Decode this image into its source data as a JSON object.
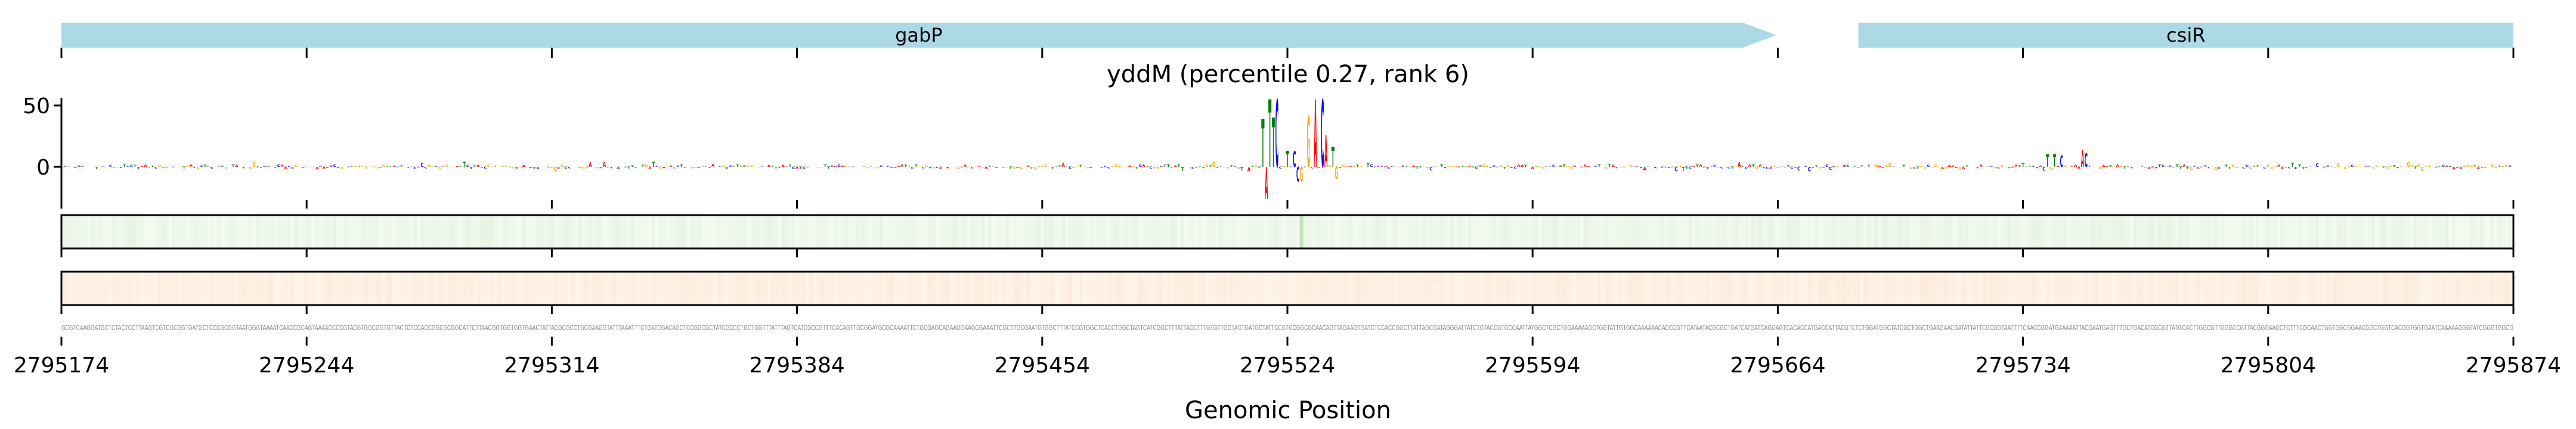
{
  "chart_data": {
    "type": "sequence-logo",
    "title": "yddM (percentile 0.27, rank 6)",
    "xlabel": "Genomic Position",
    "ylabel": "",
    "xlim": [
      2795174,
      2795874
    ],
    "ylim": [
      -25,
      55
    ],
    "yticks": [
      {
        "value": 50,
        "label": "50"
      },
      {
        "value": 0,
        "label": "0"
      }
    ],
    "xticks": [
      {
        "value": 2795174,
        "label": "2795174"
      },
      {
        "value": 2795244,
        "label": "2795244"
      },
      {
        "value": 2795314,
        "label": "2795314"
      },
      {
        "value": 2795384,
        "label": "2795384"
      },
      {
        "value": 2795454,
        "label": "2795454"
      },
      {
        "value": 2795524,
        "label": "2795524"
      },
      {
        "value": 2795594,
        "label": "2795594"
      },
      {
        "value": 2795664,
        "label": "2795664"
      },
      {
        "value": 2795734,
        "label": "2795734"
      },
      {
        "value": 2795804,
        "label": "2795804"
      },
      {
        "value": 2795874,
        "label": "2795874"
      }
    ],
    "genes": [
      {
        "name": "gabP",
        "start": 2795174,
        "end": 2795654,
        "strand": "+"
      },
      {
        "name": "csiR",
        "start": 2795687,
        "end": 2795874,
        "strand": "none"
      }
    ],
    "logo_peaks": [
      {
        "pos": 2795517,
        "base": "T",
        "value": 39
      },
      {
        "pos": 2795518,
        "base": "A",
        "value": -26
      },
      {
        "pos": 2795519,
        "base": "T",
        "value": 55
      },
      {
        "pos": 2795520,
        "base": "T",
        "value": 40
      },
      {
        "pos": 2795521,
        "base": "C",
        "value": 55
      },
      {
        "pos": 2795524,
        "base": "T",
        "value": 13
      },
      {
        "pos": 2795526,
        "base": "C",
        "value": 13
      },
      {
        "pos": 2795527,
        "base": "C",
        "value": -12
      },
      {
        "pos": 2795528,
        "base": "G",
        "value": -12
      },
      {
        "pos": 2795530,
        "base": "G",
        "value": 41
      },
      {
        "pos": 2795532,
        "base": "A",
        "value": 55
      },
      {
        "pos": 2795534,
        "base": "C",
        "value": 55
      },
      {
        "pos": 2795535,
        "base": "A",
        "value": 26
      },
      {
        "pos": 2795537,
        "base": "T",
        "value": 16
      },
      {
        "pos": 2795538,
        "base": "G",
        "value": -10
      },
      {
        "pos": 2795741,
        "base": "T",
        "value": 10
      },
      {
        "pos": 2795743,
        "base": "T",
        "value": 10
      },
      {
        "pos": 2795745,
        "base": "C",
        "value": 9
      },
      {
        "pos": 2795751,
        "base": "A",
        "value": 14
      },
      {
        "pos": 2795752,
        "base": "C",
        "value": 11
      }
    ],
    "tracks": [
      {
        "name": "track-1",
        "color": "#2ca02c",
        "highlight_pos": 2795528
      },
      {
        "name": "track-2",
        "color": "#ff7f0e"
      }
    ],
    "sequence": "GCGTCAAGGATGCTCTACTCCTTAAGTCGTCGCGGTGATGCTCCCGCGGTAATGGGTAAAATCAACCGCAGTAAAACCCCGTACGTGGCGGTGTTACTCTCCACCGGCGCGGCATTCTTAACGGTGGTGGTGAACTATTACGCGCCTGCGAAGGTATTTAAATTTCTGATCGACAGCTCCGGCGCTATCGCCCTGCTGGTTTATTTAGTCATCGCCGTTTCACAGTTGCGGATGCGCAAAATTCTGCGAGCAGAAGGAAGCGAAATTCGCTTGCGAATGTGGCTTTATCCGTGGCTCACCTGGCTAGTCATCGGCTTTATTACCTTTGTGTTGGTAGTGATGCTATTCCGTCCGGCGCAACAGTTAGAAGTGATCTCCACCGGCTTATTAGCGATAGGGATTATCTGTACCGTGCCAATTATGGCTCGCTGGAAAAAGCTGGTATTGTGGCAAAAAACACCCGTTCATAATACGCGCTGATCATGATCAGGAGTCACACCATGACCATTACGTCTCTGGATGGCTATCGCTGGCTGAAGAACGATATTATTCGCGGTAATTTTCAACCGGATGAAAAATTACGAATGAGTTTGCTGACATCGCGTTATGCACTTGGCGTTGGGCCGTTACGGGAAGCTCTTTCGCAACTGGTGGCGGAACGGCTGGTCACGGTGGTGAATCAAAAAGGGTATCGGGTGGCG",
    "base_colors": {
      "A": "#ff0000",
      "C": "#0000ff",
      "G": "#ffa500",
      "T": "#008000"
    },
    "gene_color": "#add8e6"
  }
}
